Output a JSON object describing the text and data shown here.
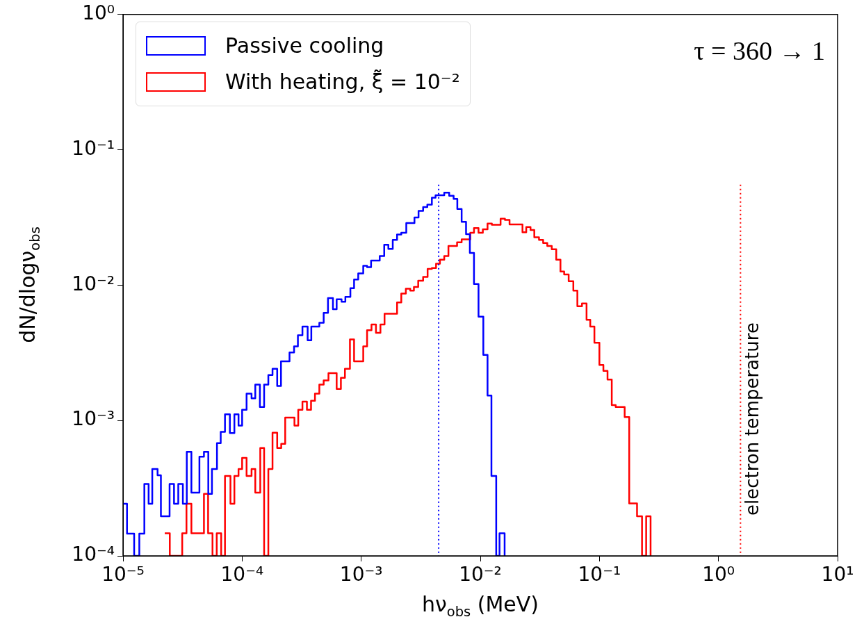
{
  "chart_data": {
    "type": "step",
    "xlabel": "hν$_{obs}$ (MeV)",
    "ylabel": "dN/dlogν$_{obs}$",
    "log": "xy",
    "legend": "top left",
    "annotations": [
      "τ = 360 → 1"
    ],
    "xlim": [
      1e-05,
      10
    ],
    "ylim": [
      0.0001,
      1
    ],
    "xticks": [
      {
        "value": 1e-05,
        "label": "10⁻⁵"
      },
      {
        "value": 0.0001,
        "label": "10⁻⁴"
      },
      {
        "value": 0.001,
        "label": "10⁻³"
      },
      {
        "value": 0.01,
        "label": "10⁻²"
      },
      {
        "value": 0.1,
        "label": "10⁻¹"
      },
      {
        "value": 1,
        "label": "10⁰"
      },
      {
        "value": 10,
        "label": "10¹"
      }
    ],
    "yticks": [
      {
        "value": 0.0001,
        "label": "10⁻⁴"
      },
      {
        "value": 0.001,
        "label": "10⁻³"
      },
      {
        "value": 0.01,
        "label": "10⁻²"
      },
      {
        "value": 0.1,
        "label": "10⁻¹"
      },
      {
        "value": 1,
        "label": "10⁰"
      }
    ],
    "ref_lines": [
      {
        "axis": "x",
        "value": 0.00447,
        "color": "#0000ff",
        "line_style": "dotted"
      },
      {
        "axis": "x",
        "value": 1.53,
        "color": "#ff0000",
        "line_style": "dotted",
        "label": "electron temperature"
      }
    ],
    "series": [
      {
        "name": "Passive cooling",
        "color": "#0000ff",
        "x": [
          1e-05,
          1.08e-05,
          1.24e-05,
          1.37e-05,
          1.51e-05,
          1.64e-05,
          1.76e-05,
          1.95e-05,
          2.08e-05,
          2.46e-05,
          2.68e-05,
          2.91e-05,
          3.18e-05,
          3.43e-05,
          3.75e-05,
          4.38e-05,
          4.78e-05,
          5.2e-05,
          5.58e-05,
          6.15e-05,
          6.61e-05,
          7.18e-05,
          7.89e-05,
          8.61e-05,
          9.33e-05,
          0.0001,
          0.000109,
          0.00012,
          0.000129,
          0.000141,
          0.000153,
          0.000166,
          0.00018,
          0.000197,
          0.000212,
          0.00025,
          0.000273,
          0.000294,
          0.000321,
          0.000355,
          0.000381,
          0.000445,
          0.000484,
          0.000526,
          0.000579,
          0.000622,
          0.000684,
          0.000736,
          0.000811,
          0.000871,
          0.000944,
          0.00104,
          0.00112,
          0.00121,
          0.00143,
          0.00156,
          0.00169,
          0.00184,
          0.002,
          0.00217,
          0.00239,
          0.0028,
          0.00303,
          0.00331,
          0.00359,
          0.00392,
          0.00421,
          0.00498,
          0.00548,
          0.00597,
          0.00641,
          0.00697,
          0.00759,
          0.00817,
          0.00885,
          0.00966,
          0.0106,
          0.0115,
          0.0124,
          0.0136,
          0.0145,
          0.016
        ],
        "values": [
          0.000243,
          0.000146,
          0.0001,
          0.000146,
          0.00034,
          0.000243,
          0.000438,
          0.000394,
          0.000196,
          0.00034,
          0.000243,
          0.00034,
          0.000243,
          0.000588,
          0.000293,
          0.000541,
          0.000588,
          0.000287,
          0.000438,
          0.000681,
          0.000824,
          0.00111,
          0.000807,
          0.00111,
          0.000916,
          0.0012,
          0.00158,
          0.00146,
          0.00184,
          0.00126,
          0.00184,
          0.00217,
          0.00241,
          0.0018,
          0.00274,
          0.00318,
          0.00353,
          0.00427,
          0.00495,
          0.00392,
          0.00495,
          0.00527,
          0.00624,
          0.00803,
          0.00664,
          0.00786,
          0.00754,
          0.0082,
          0.00951,
          0.011,
          0.0122,
          0.0139,
          0.0136,
          0.0152,
          0.0164,
          0.0199,
          0.0185,
          0.0216,
          0.0237,
          0.0244,
          0.0288,
          0.0316,
          0.0354,
          0.0378,
          0.0394,
          0.0443,
          0.0462,
          0.0482,
          0.0458,
          0.0434,
          0.0366,
          0.0294,
          0.0238,
          0.0173,
          0.0102,
          0.00585,
          0.00305,
          0.00153,
          0.000389,
          0.0001,
          0.000147,
          0.0001
        ]
      },
      {
        "name": "With heating, ξ̃ = 10⁻²",
        "color": "#ff0000",
        "x": [
          2.24e-05,
          2.47e-05,
          3.14e-05,
          3.41e-05,
          3.75e-05,
          4.78e-05,
          5.18e-05,
          5.64e-05,
          6.12e-05,
          6.67e-05,
          7.18e-05,
          7.98e-05,
          8.61e-05,
          9.33e-05,
          0.0001,
          0.000109,
          0.00012,
          0.000129,
          0.000142,
          0.000153,
          0.000166,
          0.00018,
          0.000197,
          0.000213,
          0.00023,
          0.000275,
          0.000296,
          0.000321,
          0.00035,
          0.000379,
          0.000409,
          0.000445,
          0.000484,
          0.000531,
          0.000622,
          0.000675,
          0.00073,
          0.000804,
          0.000871,
          0.00104,
          0.00112,
          0.00122,
          0.00133,
          0.00145,
          0.00157,
          0.002,
          0.00217,
          0.00237,
          0.00258,
          0.00277,
          0.00301,
          0.00331,
          0.00361,
          0.00392,
          0.00425,
          0.00458,
          0.00498,
          0.0054,
          0.00638,
          0.00697,
          0.00824,
          0.00885,
          0.00966,
          0.0105,
          0.0115,
          0.0125,
          0.0148,
          0.0161,
          0.0176,
          0.0226,
          0.0243,
          0.0264,
          0.0284,
          0.0311,
          0.0337,
          0.0365,
          0.0398,
          0.0434,
          0.0471,
          0.0506,
          0.0552,
          0.0604,
          0.0653,
          0.0714,
          0.078,
          0.0838,
          0.0908,
          0.1,
          0.108,
          0.117,
          0.127,
          0.137,
          0.163,
          0.178,
          0.207,
          0.228,
          0.247,
          0.269
        ],
        "values": [
          0.000147,
          0.0001,
          0.000147,
          0.000243,
          0.000147,
          0.000287,
          0.000147,
          0.0001,
          0.000147,
          0.0001,
          0.000389,
          0.000243,
          0.000389,
          0.000438,
          0.000529,
          0.000389,
          0.000438,
          0.000293,
          0.000626,
          0.0001,
          0.000438,
          0.000813,
          0.000626,
          0.000673,
          0.00105,
          0.000916,
          0.0012,
          0.00138,
          0.0012,
          0.0014,
          0.00158,
          0.00184,
          0.00198,
          0.00224,
          0.00171,
          0.00207,
          0.00241,
          0.00397,
          0.00274,
          0.00353,
          0.00464,
          0.00512,
          0.00445,
          0.00512,
          0.00615,
          0.00745,
          0.00867,
          0.00942,
          0.00911,
          0.00971,
          0.0108,
          0.0115,
          0.0132,
          0.0134,
          0.0144,
          0.0154,
          0.0164,
          0.0195,
          0.0207,
          0.0218,
          0.0244,
          0.0264,
          0.0244,
          0.0259,
          0.0285,
          0.0279,
          0.031,
          0.0303,
          0.0281,
          0.0246,
          0.0269,
          0.0256,
          0.0226,
          0.0216,
          0.0205,
          0.0195,
          0.0184,
          0.0154,
          0.0126,
          0.012,
          0.0107,
          0.00911,
          0.00698,
          0.00732,
          0.00554,
          0.00495,
          0.00376,
          0.00257,
          0.00233,
          0.00201,
          0.0013,
          0.00126,
          0.00106,
          0.000244,
          0.000196,
          0.0001,
          0.000196,
          0.0001
        ]
      }
    ]
  }
}
